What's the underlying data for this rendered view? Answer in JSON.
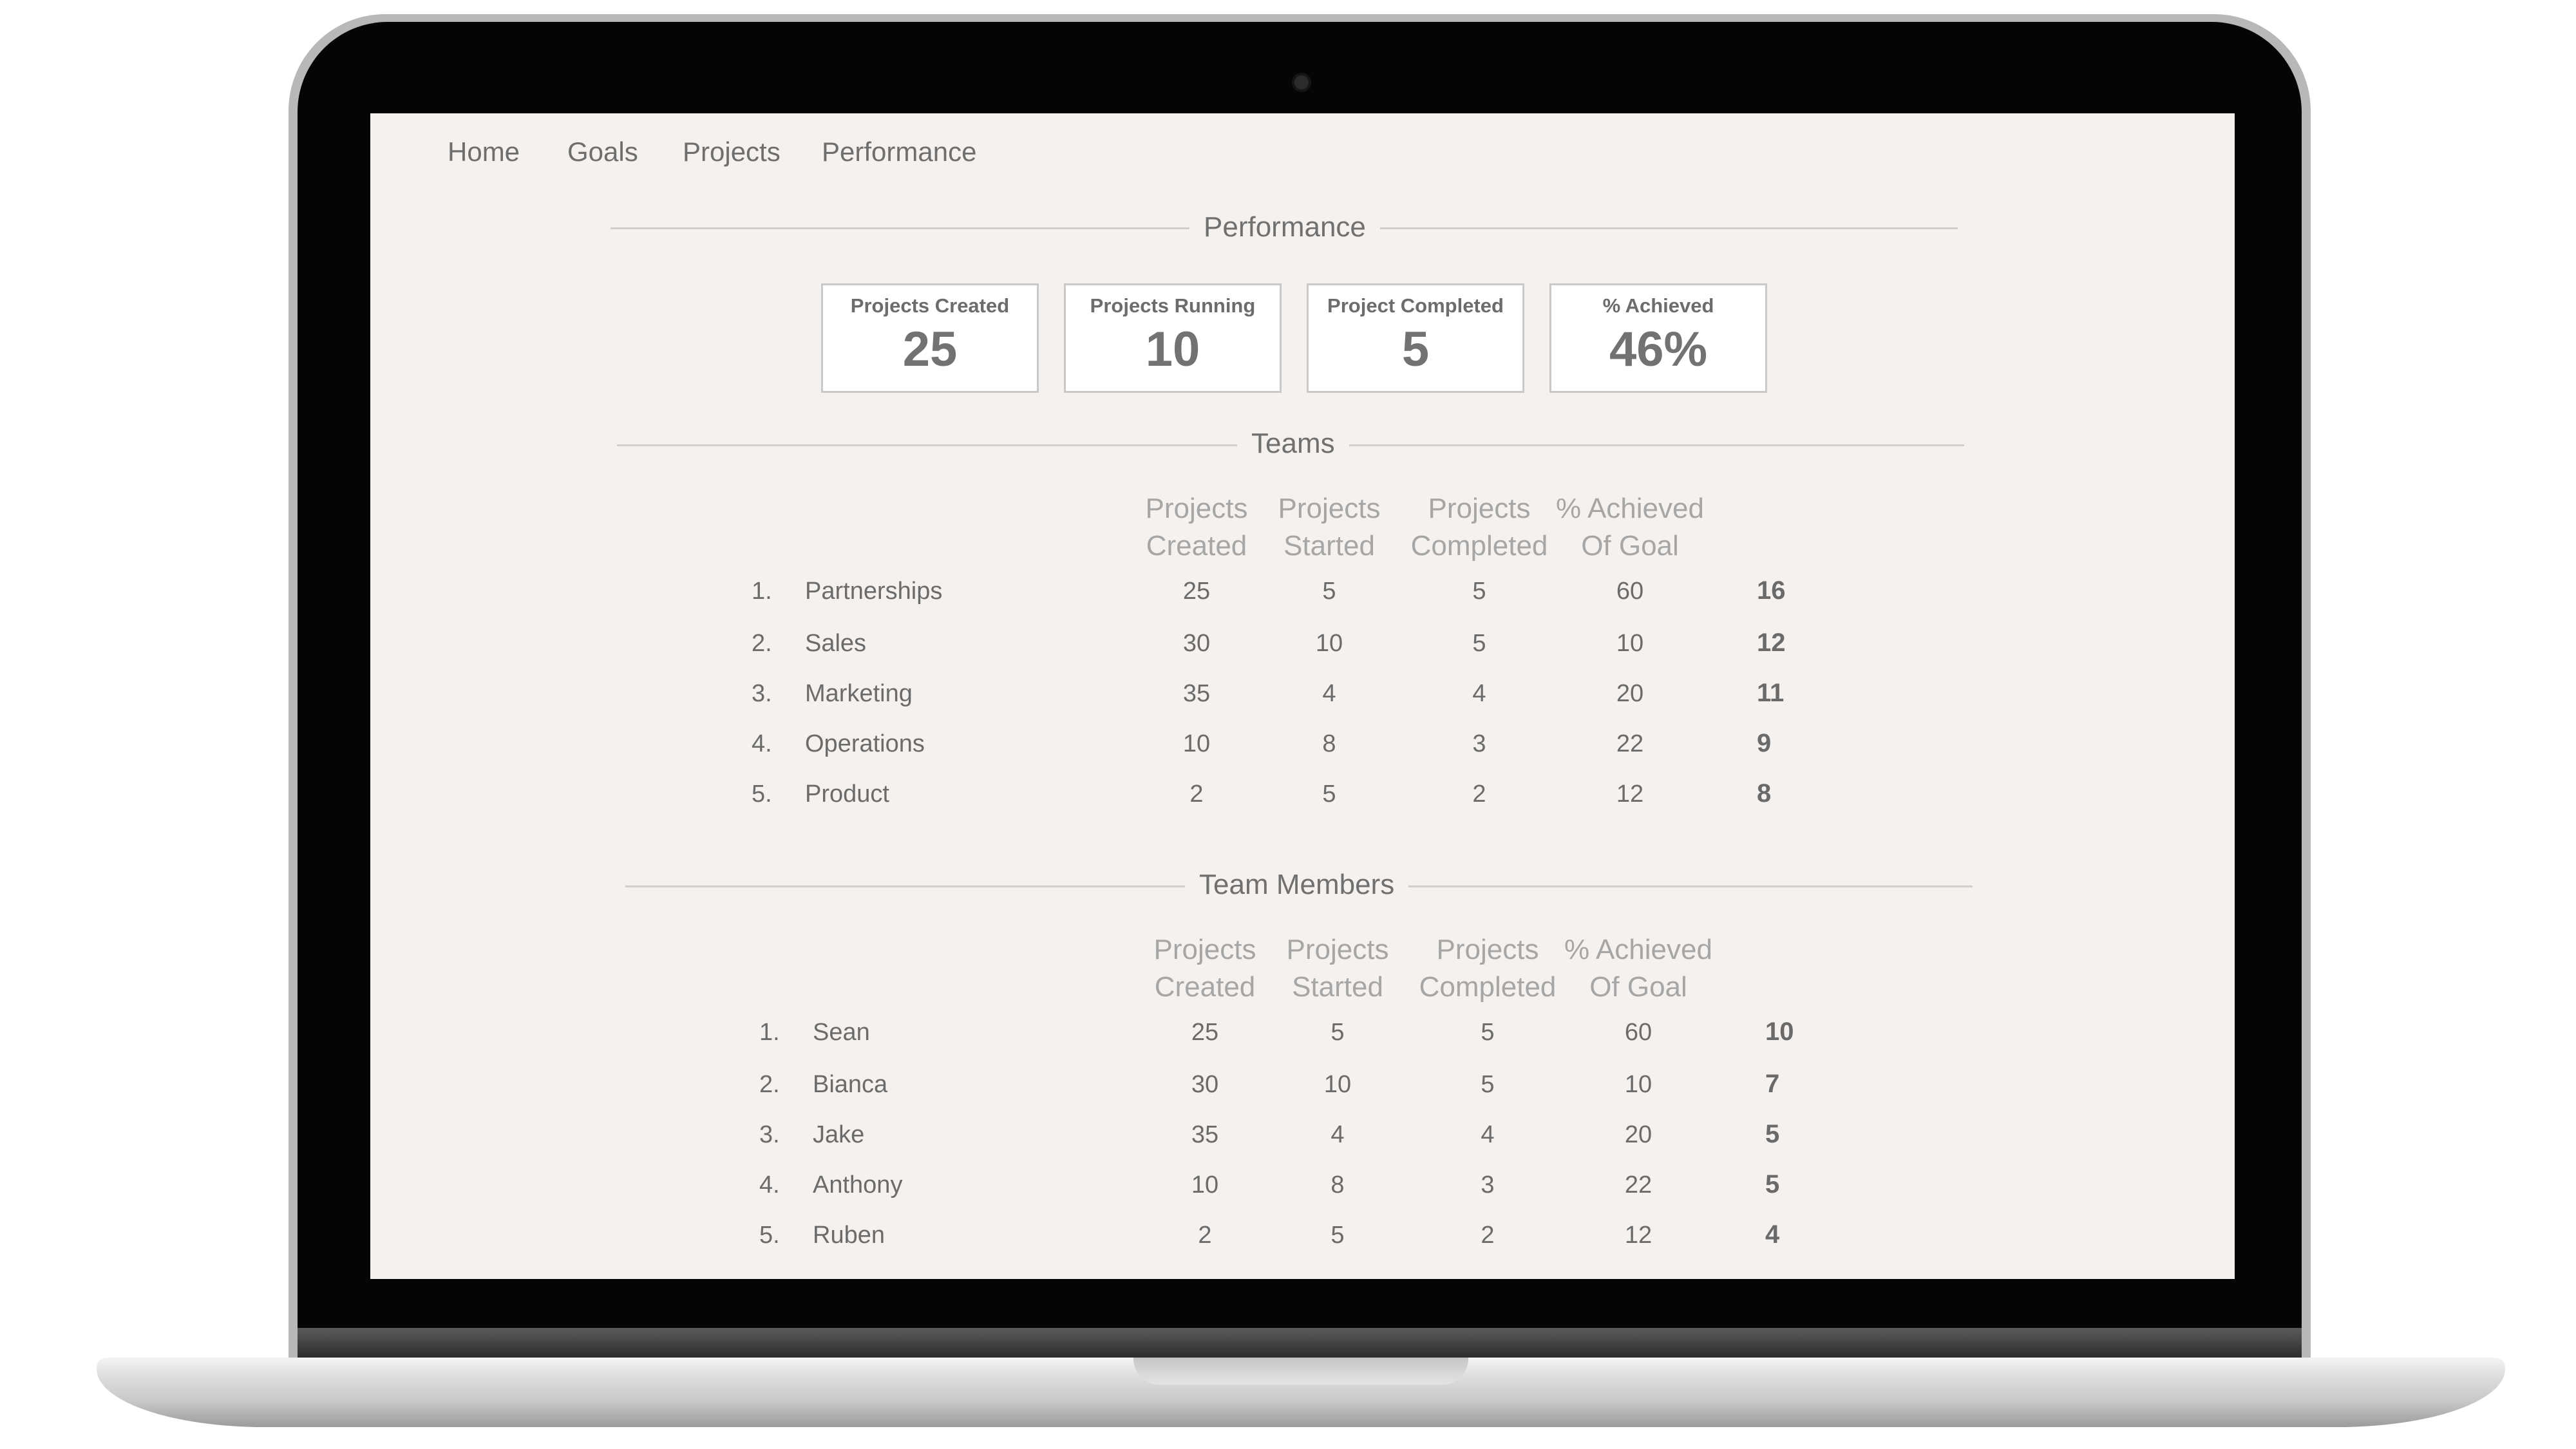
{
  "nav": {
    "items": [
      "Home",
      "Goals",
      "Projects",
      "Performance"
    ]
  },
  "performance": {
    "title": "Performance",
    "stats": [
      {
        "label": "Projects Created",
        "value": "25"
      },
      {
        "label": "Projects Running",
        "value": "10"
      },
      {
        "label": "Project Completed",
        "value": "5"
      },
      {
        "label": "% Achieved",
        "value": "46%"
      }
    ]
  },
  "teams": {
    "title": "Teams",
    "columns": [
      [
        "Projects",
        "Created"
      ],
      [
        "Projects",
        "Started"
      ],
      [
        "Projects",
        "Completed"
      ],
      [
        "% Achieved",
        "Of Goal"
      ]
    ],
    "rows": [
      {
        "rank": "1.",
        "name": "Partnerships",
        "created": "25",
        "started": "5",
        "completed": "5",
        "achieved": "60",
        "score": "16"
      },
      {
        "rank": "2.",
        "name": "Sales",
        "created": "30",
        "started": "10",
        "completed": "5",
        "achieved": "10",
        "score": "12"
      },
      {
        "rank": "3.",
        "name": "Marketing",
        "created": "35",
        "started": "4",
        "completed": "4",
        "achieved": "20",
        "score": "11"
      },
      {
        "rank": "4.",
        "name": "Operations",
        "created": "10",
        "started": "8",
        "completed": "3",
        "achieved": "22",
        "score": "9"
      },
      {
        "rank": "5.",
        "name": "Product",
        "created": "2",
        "started": "5",
        "completed": "2",
        "achieved": "12",
        "score": "8"
      }
    ]
  },
  "members": {
    "title": "Team Members",
    "columns": [
      [
        "Projects",
        "Created"
      ],
      [
        "Projects",
        "Started"
      ],
      [
        "Projects",
        "Completed"
      ],
      [
        "% Achieved",
        "Of Goal"
      ]
    ],
    "rows": [
      {
        "rank": "1.",
        "name": "Sean",
        "created": "25",
        "started": "5",
        "completed": "5",
        "achieved": "60",
        "score": "10"
      },
      {
        "rank": "2.",
        "name": "Bianca",
        "created": "30",
        "started": "10",
        "completed": "5",
        "achieved": "10",
        "score": "7"
      },
      {
        "rank": "3.",
        "name": "Jake",
        "created": "35",
        "started": "4",
        "completed": "4",
        "achieved": "20",
        "score": "5"
      },
      {
        "rank": "4.",
        "name": "Anthony",
        "created": "10",
        "started": "8",
        "completed": "3",
        "achieved": "22",
        "score": "5"
      },
      {
        "rank": "5.",
        "name": "Ruben",
        "created": "2",
        "started": "5",
        "completed": "2",
        "achieved": "12",
        "score": "4"
      }
    ]
  }
}
